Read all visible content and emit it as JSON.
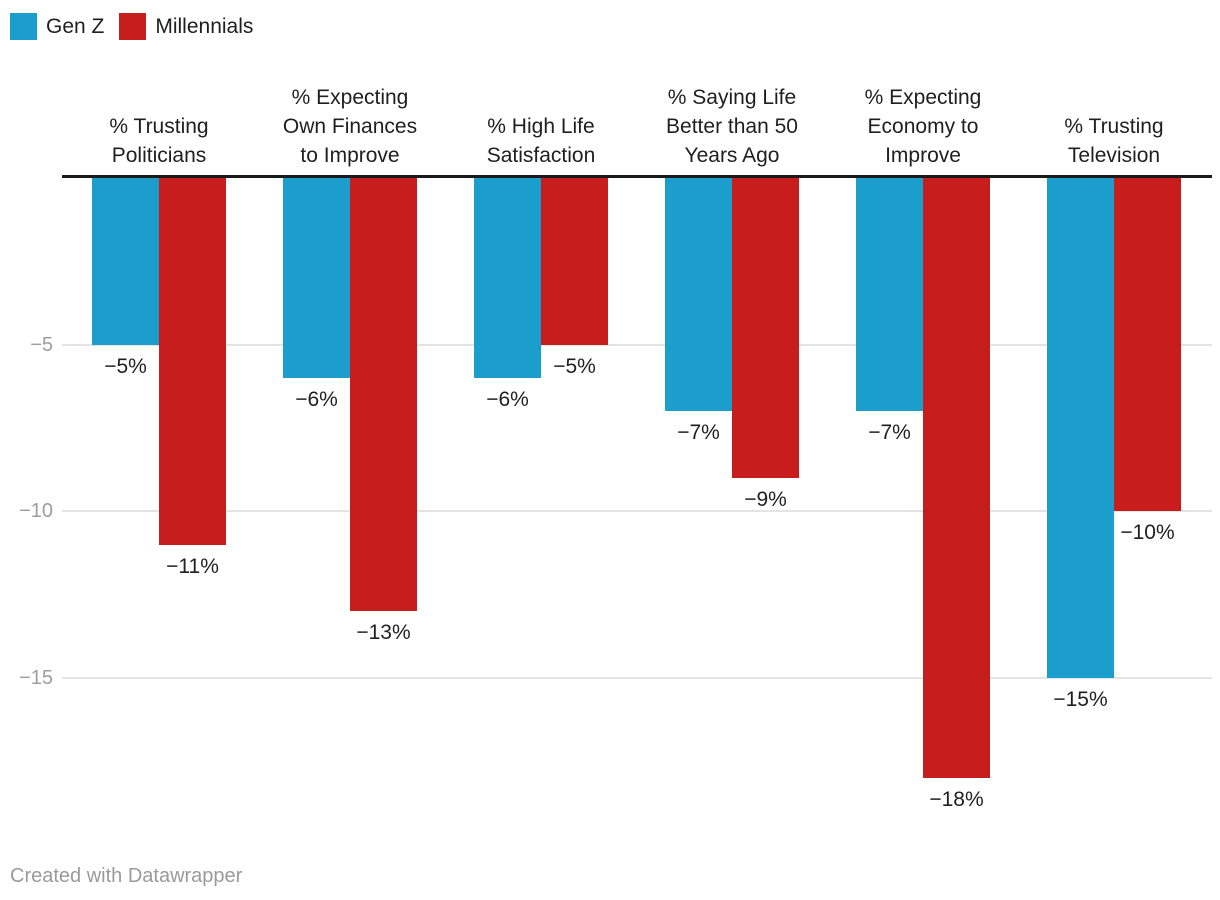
{
  "legend": {
    "items": [
      {
        "label": "Gen Z",
        "color": "#1c9ecd"
      },
      {
        "label": "Millennials",
        "color": "#c71e1d"
      }
    ]
  },
  "footer": {
    "text": "Created with Datawrapper"
  },
  "chart_data": {
    "type": "bar",
    "title": "",
    "categories": [
      "% Trusting Politicians",
      "% Expecting Own Finances to Improve",
      "% High Life Satisfaction",
      "% Saying Life Better than 50 Years Ago",
      "% Expecting Economy to Improve",
      "% Trusting Television"
    ],
    "category_lines": [
      [
        "% Trusting",
        "Politicians"
      ],
      [
        "% Expecting",
        "Own Finances",
        "to Improve"
      ],
      [
        "% High Life",
        "Satisfaction"
      ],
      [
        "% Saying Life",
        "Better than 50",
        "Years Ago"
      ],
      [
        "% Expecting",
        "Economy to",
        "Improve"
      ],
      [
        "% Trusting",
        "Television"
      ]
    ],
    "series": [
      {
        "name": "Gen Z",
        "color": "#1c9ecd",
        "values": [
          -5,
          -6,
          -6,
          -7,
          -7,
          -15
        ]
      },
      {
        "name": "Millennials",
        "color": "#c71e1d",
        "values": [
          -11,
          -13,
          -5,
          -9,
          -18,
          -10
        ]
      }
    ],
    "value_suffix": "%",
    "data_labels": {
      "Gen Z": [
        "−5%",
        "−6%",
        "−6%",
        "−7%",
        "−7%",
        "−15%"
      ],
      "Millennials": [
        "−11%",
        "−13%",
        "−5%",
        "−9%",
        "−18%",
        "−10%"
      ]
    },
    "y_ticks": [
      -5,
      -10,
      -15
    ],
    "y_tick_labels": [
      "−5",
      "−10",
      "−15"
    ],
    "ylim": [
      -19,
      0
    ],
    "grid": true,
    "legend_position": "top-left",
    "colors": {
      "baseline": "#1a1a1a",
      "gridline": "#e4e4e4",
      "tick_label": "#9d9d9d",
      "data_label": "#1f1f1f",
      "category_label": "#1f1f1f"
    }
  }
}
